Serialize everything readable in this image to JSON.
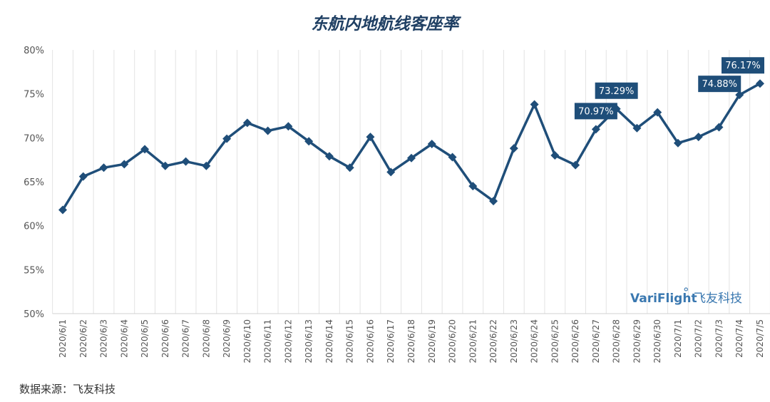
{
  "chart_data": {
    "type": "line",
    "title": "东航内地航线客座率",
    "categories": [
      "2020/6/1",
      "2020/6/2",
      "2020/6/3",
      "2020/6/4",
      "2020/6/5",
      "2020/6/6",
      "2020/6/7",
      "2020/6/8",
      "2020/6/9",
      "2020/6/10",
      "2020/6/11",
      "2020/6/12",
      "2020/6/13",
      "2020/6/14",
      "2020/6/15",
      "2020/6/16",
      "2020/6/17",
      "2020/6/18",
      "2020/6/19",
      "2020/6/20",
      "2020/6/21",
      "2020/6/22",
      "2020/6/23",
      "2020/6/24",
      "2020/6/25",
      "2020/6/26",
      "2020/6/27",
      "2020/6/28",
      "2020/6/29",
      "2020/6/30",
      "2020/7/1",
      "2020/7/2",
      "2020/7/3",
      "2020/7/4",
      "2020/7/5"
    ],
    "values": [
      61.8,
      65.6,
      66.6,
      67.0,
      68.7,
      66.8,
      67.3,
      66.8,
      69.9,
      71.7,
      70.8,
      71.3,
      69.6,
      67.9,
      66.6,
      70.1,
      66.1,
      67.7,
      69.3,
      67.8,
      64.5,
      62.8,
      68.8,
      73.8,
      68.0,
      66.9,
      70.97,
      73.29,
      71.1,
      72.9,
      69.4,
      70.1,
      71.2,
      74.88,
      76.17
    ],
    "data_labels": [
      {
        "index": 26,
        "text": "70.97%"
      },
      {
        "index": 27,
        "text": "73.29%"
      },
      {
        "index": 33,
        "text": "74.88%"
      },
      {
        "index": 34,
        "text": "76.17%"
      }
    ],
    "yticks": [
      "50%",
      "55%",
      "60%",
      "65%",
      "70%",
      "75%",
      "80%"
    ],
    "ylim": [
      50,
      80
    ],
    "grid": "vertical",
    "line_color": "#1f4e79",
    "label_bg": "#1f4e79"
  },
  "watermark": {
    "brand": "VariFlight",
    "mark": "°",
    "cn": "飞友科技"
  },
  "source": "数据来源：飞友科技"
}
